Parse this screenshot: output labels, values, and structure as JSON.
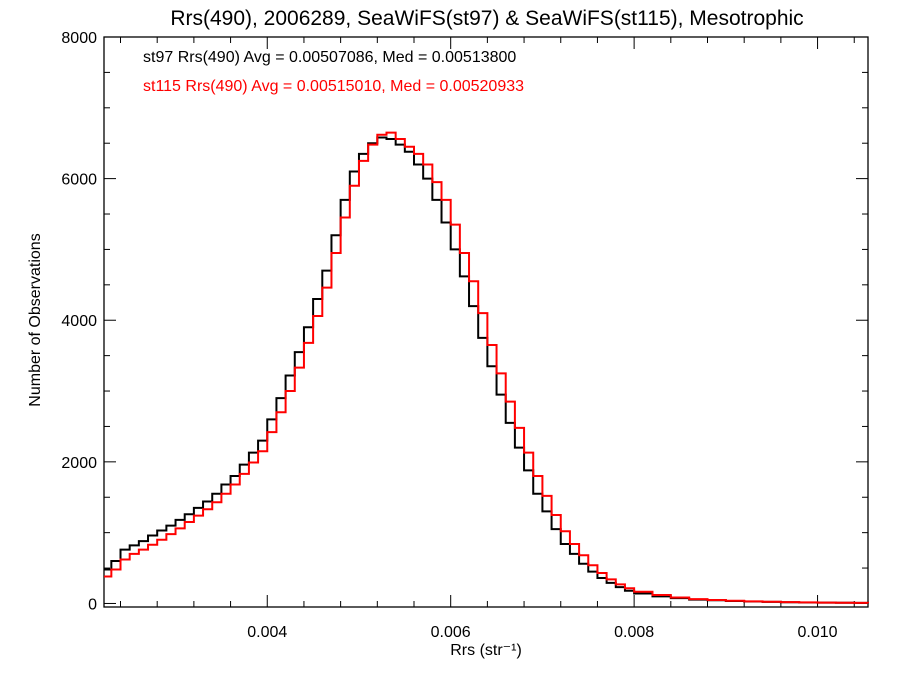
{
  "chart_data": {
    "type": "line",
    "title": "Rrs(490), 2006289, SeaWiFS(st97) & SeaWiFS(st115), Mesotrophic",
    "xlabel": "Rrs (str⁻¹)",
    "ylabel": "Number of Observations",
    "xlim": [
      0.00222,
      0.01055
    ],
    "ylim": [
      -50,
      8000
    ],
    "xticks": [
      0.004,
      0.006,
      0.008,
      0.01
    ],
    "xtick_labels": [
      "0.004",
      "0.006",
      "0.008",
      "0.010"
    ],
    "yticks": [
      0,
      2000,
      4000,
      6000,
      8000
    ],
    "ytick_labels": [
      "0",
      "2000",
      "4000",
      "6000",
      "8000"
    ],
    "step": true,
    "grid": false,
    "series": [
      {
        "name": "st97",
        "color": "#000000",
        "annotation": "st97 Rrs(490) Avg = 0.00507086, Med = 0.00513800",
        "x": [
          0.00222,
          0.0023,
          0.0024,
          0.0025,
          0.0026,
          0.0027,
          0.0028,
          0.0029,
          0.003,
          0.0031,
          0.0032,
          0.0033,
          0.0034,
          0.0035,
          0.0036,
          0.0037,
          0.0038,
          0.0039,
          0.004,
          0.0041,
          0.0042,
          0.0043,
          0.0044,
          0.0045,
          0.0046,
          0.0047,
          0.0048,
          0.0049,
          0.005,
          0.0051,
          0.0052,
          0.0053,
          0.0054,
          0.0055,
          0.0056,
          0.0057,
          0.0058,
          0.0059,
          0.006,
          0.0061,
          0.0062,
          0.0063,
          0.0064,
          0.0065,
          0.0066,
          0.0067,
          0.0068,
          0.0069,
          0.007,
          0.0071,
          0.0072,
          0.0073,
          0.0074,
          0.0075,
          0.0076,
          0.0077,
          0.0078,
          0.0079,
          0.008,
          0.0082,
          0.0084,
          0.0086,
          0.0088,
          0.009,
          0.0092,
          0.0094,
          0.0096,
          0.0098,
          0.01,
          0.0102,
          0.0104,
          0.01055
        ],
        "y": [
          480,
          600,
          760,
          820,
          880,
          960,
          1030,
          1100,
          1180,
          1260,
          1350,
          1440,
          1550,
          1680,
          1800,
          1960,
          2130,
          2300,
          2600,
          2900,
          3220,
          3550,
          3900,
          4300,
          4700,
          5200,
          5700,
          6100,
          6350,
          6500,
          6580,
          6560,
          6480,
          6380,
          6200,
          6000,
          5700,
          5380,
          5000,
          4620,
          4200,
          3750,
          3350,
          2950,
          2550,
          2200,
          1880,
          1550,
          1300,
          1050,
          840,
          700,
          560,
          450,
          360,
          290,
          230,
          180,
          140,
          100,
          75,
          55,
          45,
          35,
          28,
          22,
          18,
          14,
          12,
          10,
          8,
          5
        ]
      },
      {
        "name": "st115",
        "color": "#ff0000",
        "annotation": "st115 Rrs(490) Avg = 0.00515010, Med = 0.00520933",
        "x": [
          0.00222,
          0.0023,
          0.0024,
          0.0025,
          0.0026,
          0.0027,
          0.0028,
          0.0029,
          0.003,
          0.0031,
          0.0032,
          0.0033,
          0.0034,
          0.0035,
          0.0036,
          0.0037,
          0.0038,
          0.0039,
          0.004,
          0.0041,
          0.0042,
          0.0043,
          0.0044,
          0.0045,
          0.0046,
          0.0047,
          0.0048,
          0.0049,
          0.005,
          0.0051,
          0.0052,
          0.0053,
          0.0054,
          0.0055,
          0.0056,
          0.0057,
          0.0058,
          0.0059,
          0.006,
          0.0061,
          0.0062,
          0.0063,
          0.0064,
          0.0065,
          0.0066,
          0.0067,
          0.0068,
          0.0069,
          0.007,
          0.0071,
          0.0072,
          0.0073,
          0.0074,
          0.0075,
          0.0076,
          0.0077,
          0.0078,
          0.0079,
          0.008,
          0.0082,
          0.0084,
          0.0086,
          0.0088,
          0.009,
          0.0092,
          0.0094,
          0.0096,
          0.0098,
          0.01,
          0.0102,
          0.0104,
          0.01055
        ],
        "y": [
          380,
          480,
          620,
          700,
          760,
          830,
          900,
          980,
          1060,
          1150,
          1240,
          1330,
          1430,
          1550,
          1680,
          1830,
          1990,
          2150,
          2420,
          2700,
          3000,
          3330,
          3680,
          4060,
          4460,
          4950,
          5450,
          5900,
          6250,
          6480,
          6620,
          6650,
          6560,
          6450,
          6350,
          6200,
          5950,
          5700,
          5350,
          4950,
          4550,
          4100,
          3650,
          3250,
          2850,
          2480,
          2130,
          1800,
          1520,
          1250,
          1020,
          840,
          680,
          540,
          430,
          340,
          270,
          215,
          165,
          120,
          85,
          62,
          48,
          38,
          30,
          24,
          19,
          15,
          12,
          10,
          8,
          5
        ]
      }
    ]
  }
}
